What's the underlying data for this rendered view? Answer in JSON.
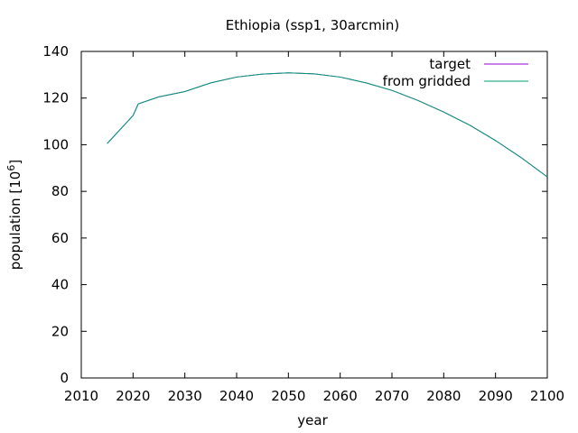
{
  "chart_data": {
    "type": "line",
    "title": "Ethiopia (ssp1, 30arcmin)",
    "xlabel": "year",
    "ylabel": "population [10",
    "ylabel_sup": "6",
    "ylabel_suffix": "]",
    "xlim": [
      2010,
      2100
    ],
    "ylim": [
      0,
      140
    ],
    "xticks": [
      2010,
      2020,
      2030,
      2040,
      2050,
      2060,
      2070,
      2080,
      2090,
      2100
    ],
    "yticks": [
      0,
      20,
      40,
      60,
      80,
      100,
      120,
      140
    ],
    "grid": false,
    "legend": "top-right",
    "x": [
      2015,
      2020,
      2021,
      2025,
      2030,
      2035,
      2040,
      2045,
      2050,
      2055,
      2060,
      2065,
      2070,
      2075,
      2080,
      2085,
      2090,
      2095,
      2100
    ],
    "series": [
      {
        "name": "target",
        "color": "#9400d3",
        "values": [
          100.5,
          112.5,
          117.5,
          120.5,
          122.8,
          126.5,
          129.0,
          130.3,
          130.8,
          130.4,
          129.0,
          126.5,
          123.3,
          119.0,
          114.0,
          108.4,
          101.8,
          94.4,
          86.2
        ]
      },
      {
        "name": "from gridded",
        "color": "#009e73",
        "values": [
          100.5,
          112.5,
          117.5,
          120.5,
          122.8,
          126.5,
          129.0,
          130.3,
          130.8,
          130.4,
          129.0,
          126.5,
          123.3,
          119.0,
          114.0,
          108.4,
          101.8,
          94.4,
          86.2
        ]
      }
    ]
  }
}
